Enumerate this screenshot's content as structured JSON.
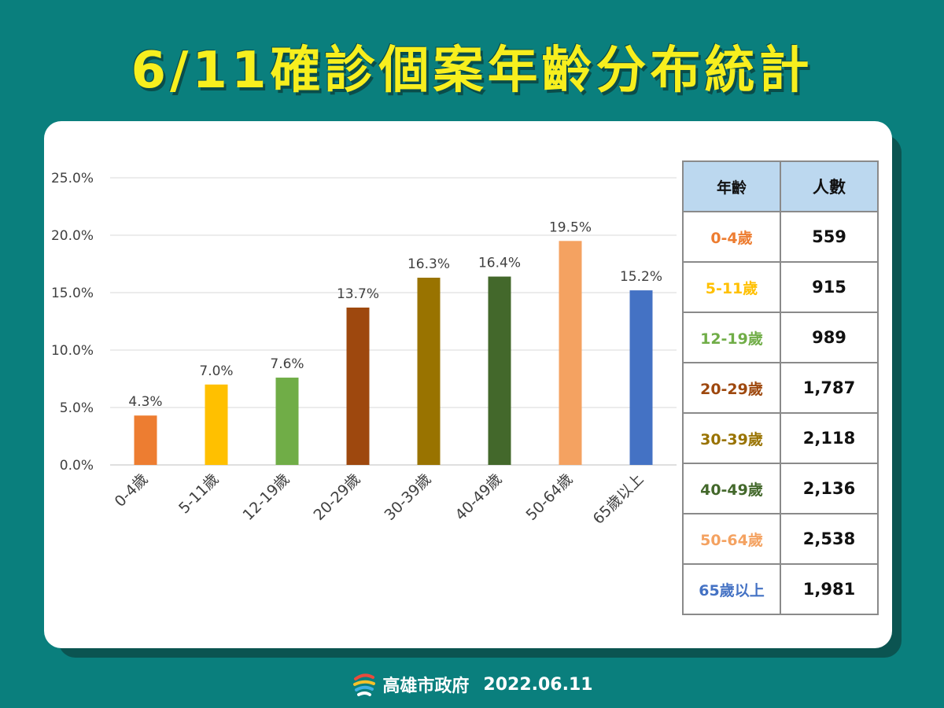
{
  "title": "6/11確診個案年齡分布統計",
  "chart_data": {
    "type": "bar",
    "categories": [
      "0-4歲",
      "5-11歲",
      "12-19歲",
      "20-29歲",
      "30-39歲",
      "40-49歲",
      "50-64歲",
      "65歲以上"
    ],
    "values": [
      4.3,
      7.0,
      7.6,
      13.7,
      16.3,
      16.4,
      19.5,
      15.2
    ],
    "value_labels": [
      "4.3%",
      "7.0%",
      "7.6%",
      "13.7%",
      "16.3%",
      "16.4%",
      "19.5%",
      "15.2%"
    ],
    "colors": [
      "#ed7d31",
      "#ffc000",
      "#70ad47",
      "#9e480e",
      "#997300",
      "#43682b",
      "#f4a261",
      "#4472c4"
    ],
    "ylim": [
      0,
      25
    ],
    "yticks": [
      0,
      5,
      10,
      15,
      20,
      25
    ],
    "ytick_labels": [
      "0.0%",
      "5.0%",
      "10.0%",
      "15.0%",
      "20.0%",
      "25.0%"
    ],
    "grid": true,
    "title": "",
    "xlabel": "",
    "ylabel": ""
  },
  "table": {
    "headers": [
      "年齡",
      "人數"
    ],
    "rows": [
      {
        "age": "0-4歲",
        "count": "559",
        "color": "#ed7d31"
      },
      {
        "age": "5-11歲",
        "count": "915",
        "color": "#ffc000"
      },
      {
        "age": "12-19歲",
        "count": "989",
        "color": "#70ad47"
      },
      {
        "age": "20-29歲",
        "count": "1,787",
        "color": "#9e480e"
      },
      {
        "age": "30-39歲",
        "count": "2,118",
        "color": "#997300"
      },
      {
        "age": "40-49歲",
        "count": "2,136",
        "color": "#43682b"
      },
      {
        "age": "50-64歲",
        "count": "2,538",
        "color": "#f4a261"
      },
      {
        "age": "65歲以上",
        "count": "1,981",
        "color": "#4472c4"
      }
    ]
  },
  "footer": {
    "logo_icon": "kaohsiung-logo-icon",
    "org": "高雄市政府",
    "date": "2022.06.11"
  }
}
